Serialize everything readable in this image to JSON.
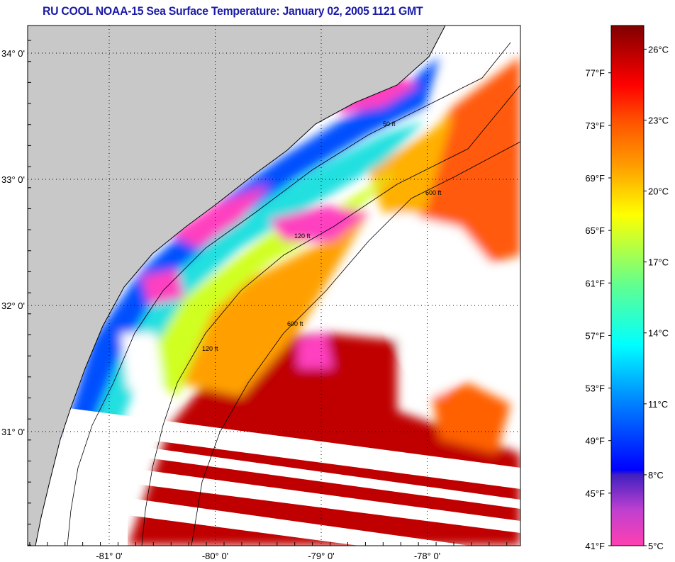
{
  "title": "RU COOL  NOAA-15  Sea Surface Temperature:  January 02, 2005 1121 GMT",
  "map": {
    "lat_labels": [
      {
        "label": "34° 0'",
        "value": 34
      },
      {
        "label": "33° 0'",
        "value": 33
      },
      {
        "label": "32° 0'",
        "value": 32
      },
      {
        "label": "31° 0'",
        "value": 31
      }
    ],
    "lon_labels": [
      {
        "label": "-81° 0'",
        "value": -81
      },
      {
        "label": "-80° 0'",
        "value": -80
      },
      {
        "label": "-79° 0'",
        "value": -79
      },
      {
        "label": "-78° 0'",
        "value": -78
      }
    ],
    "contour_labels": [
      "50 ft",
      "120 ft",
      "600 ft"
    ],
    "land_color": "#c8c8c8",
    "cloud_color": "#ffffff"
  },
  "colorbar": {
    "fahrenheit_labels": [
      "77°F",
      "73°F",
      "69°F",
      "65°F",
      "61°F",
      "57°F",
      "53°F",
      "49°F",
      "45°F",
      "41°F"
    ],
    "fahrenheit_values": [
      77,
      73,
      69,
      65,
      61,
      57,
      53,
      49,
      45,
      41
    ],
    "celsius_labels": [
      "26°C",
      "23°C",
      "20°C",
      "17°C",
      "14°C",
      "11°C",
      "8°C",
      "5°C"
    ],
    "celsius_values": [
      26,
      23,
      20,
      17,
      14,
      11,
      8,
      5
    ],
    "range_c": [
      5,
      27
    ],
    "stops": [
      {
        "c": 5,
        "color": "#ff40b0"
      },
      {
        "c": 6.5,
        "color": "#c040d0"
      },
      {
        "c": 8,
        "color": "#4020c0"
      },
      {
        "c": 8.2,
        "color": "#0000ff"
      },
      {
        "c": 11,
        "color": "#0080ff"
      },
      {
        "c": 13.5,
        "color": "#00ffff"
      },
      {
        "c": 16,
        "color": "#60ff90"
      },
      {
        "c": 19,
        "color": "#ffff00"
      },
      {
        "c": 21,
        "color": "#ffa000"
      },
      {
        "c": 23,
        "color": "#ff5000"
      },
      {
        "c": 24.5,
        "color": "#ff0000"
      },
      {
        "c": 27,
        "color": "#800000"
      }
    ]
  }
}
